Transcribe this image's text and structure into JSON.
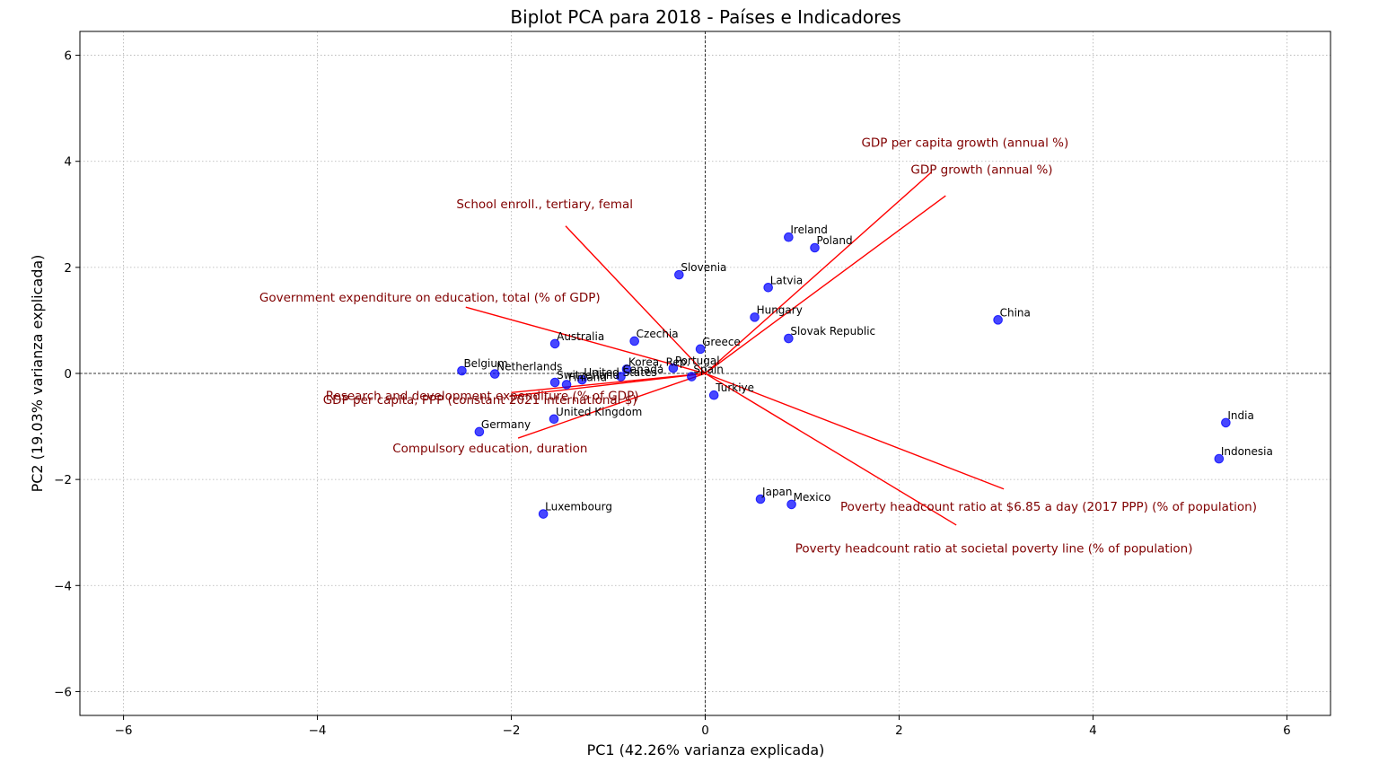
{
  "chart_data": {
    "type": "scatter",
    "title": "Biplot PCA para 2018 - Países e Indicadores",
    "xlabel": "PC1 (42.26% varianza explicada)",
    "ylabel": "PC2 (19.03% varianza explicada)",
    "xlim": [
      -6.45,
      6.45
    ],
    "ylim": [
      -6.45,
      6.45
    ],
    "xticks": [
      -6,
      -4,
      -2,
      0,
      2,
      4,
      6
    ],
    "yticks": [
      -6,
      -4,
      -2,
      0,
      2,
      4,
      6
    ],
    "xtick_labels": [
      "−6",
      "−4",
      "−2",
      "0",
      "2",
      "4",
      "6"
    ],
    "ytick_labels": [
      "−6",
      "−4",
      "−2",
      "0",
      "2",
      "4",
      "6"
    ],
    "grid": true,
    "colors": {
      "points": "#0000ff",
      "loadings": "#ff0000",
      "loading_text": "#800000"
    },
    "points": [
      {
        "label": "Ireland",
        "x": 0.86,
        "y": 2.57
      },
      {
        "label": "Poland",
        "x": 1.13,
        "y": 2.37
      },
      {
        "label": "Slovenia",
        "x": -0.27,
        "y": 1.86
      },
      {
        "label": "Latvia",
        "x": 0.65,
        "y": 1.62
      },
      {
        "label": "Hungary",
        "x": 0.51,
        "y": 1.06
      },
      {
        "label": "China",
        "x": 3.02,
        "y": 1.01
      },
      {
        "label": "Slovak Republic",
        "x": 0.86,
        "y": 0.66
      },
      {
        "label": "Australia",
        "x": -1.55,
        "y": 0.56
      },
      {
        "label": "Czechia",
        "x": -0.73,
        "y": 0.61
      },
      {
        "label": "Greece",
        "x": -0.05,
        "y": 0.46
      },
      {
        "label": "Korea, Rep.",
        "x": -0.81,
        "y": 0.08
      },
      {
        "label": "Portugal",
        "x": -0.33,
        "y": 0.1
      },
      {
        "label": "Belgium",
        "x": -2.51,
        "y": 0.05
      },
      {
        "label": "Netherlands",
        "x": -2.17,
        "y": -0.01
      },
      {
        "label": "United States",
        "x": -1.27,
        "y": -0.12
      },
      {
        "label": "Canada",
        "x": -0.87,
        "y": -0.06
      },
      {
        "label": "Switzerland",
        "x": -1.55,
        "y": -0.17
      },
      {
        "label": "Finland",
        "x": -1.43,
        "y": -0.21
      },
      {
        "label": "Spain",
        "x": -0.14,
        "y": -0.06
      },
      {
        "label": "Turkiye",
        "x": 0.09,
        "y": -0.41
      },
      {
        "label": "United Kingdom",
        "x": -1.56,
        "y": -0.86
      },
      {
        "label": "Germany",
        "x": -2.33,
        "y": -1.1
      },
      {
        "label": "India",
        "x": 5.37,
        "y": -0.93
      },
      {
        "label": "Indonesia",
        "x": 5.3,
        "y": -1.61
      },
      {
        "label": "Japan",
        "x": 0.57,
        "y": -2.37
      },
      {
        "label": "Mexico",
        "x": 0.89,
        "y": -2.47
      },
      {
        "label": "Luxembourg",
        "x": -1.67,
        "y": -2.65
      }
    ],
    "loadings": [
      {
        "label": "GDP per capita growth (annual %)",
        "x": 2.33,
        "y": 3.79
      },
      {
        "label": "GDP growth (annual %)",
        "x": 2.48,
        "y": 3.35
      },
      {
        "label": "School enroll., tertiary, femal",
        "x": -1.44,
        "y": 2.78
      },
      {
        "label": "Government expenditure on education, total (% of GDP)",
        "x": -2.47,
        "y": 1.25
      },
      {
        "label": "Research and development expenditure (% of GDP)",
        "x": -2.0,
        "y": -0.36
      },
      {
        "label": "GDP per capita, PPP (constant 2021 international $)",
        "x": -2.02,
        "y": -0.43
      },
      {
        "label": "Compulsory education, duration",
        "x": -1.93,
        "y": -1.22
      },
      {
        "label": "Poverty headcount ratio at $6.85 a day (2017 PPP) (% of population)",
        "x": 3.08,
        "y": -2.18
      },
      {
        "label": "Poverty headcount ratio at societal poverty line (% of population)",
        "x": 2.59,
        "y": -2.86
      }
    ]
  }
}
